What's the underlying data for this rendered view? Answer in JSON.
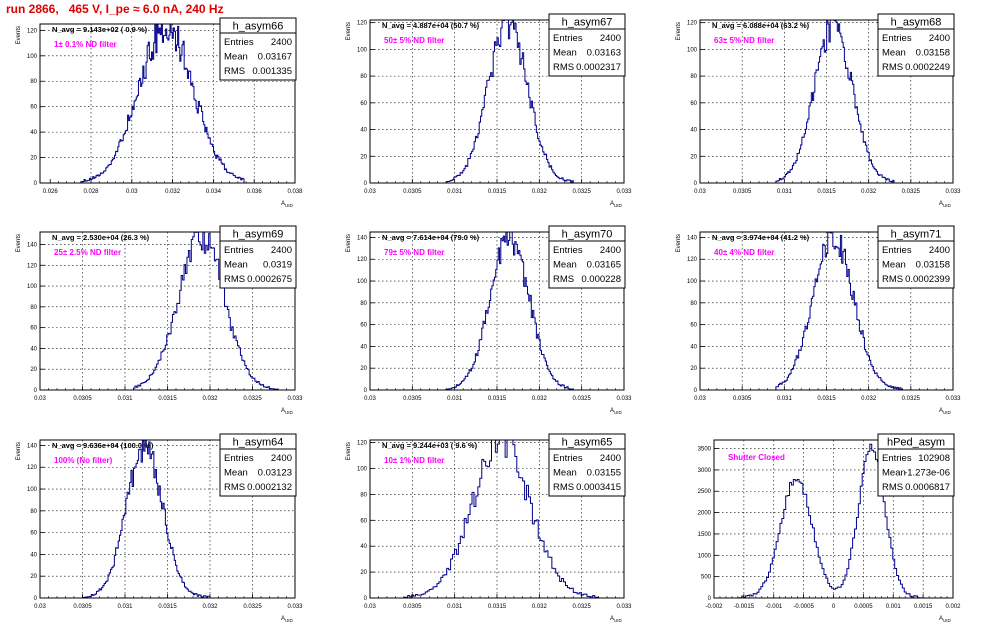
{
  "page": {
    "title": "run 2866,   465 V, I_pe ≈ 6.0 nA, 240 Hz"
  },
  "style": {
    "hist_color": "#00008b",
    "title_color": "#e00000",
    "annotation_color": "#ff00ff",
    "grid_color": "#000000"
  },
  "chart_data": [
    {
      "type": "bar",
      "name": "h_asym66",
      "xlabel": "A_uid",
      "ylabel": "Events",
      "xlim": [
        0.0255,
        0.038
      ],
      "ylim": [
        0,
        125
      ],
      "xticks": [
        "0.026",
        "0.028",
        "0.03",
        "0.032",
        "0.034",
        "0.036",
        "0.038"
      ],
      "xtick_values": [
        0.026,
        0.028,
        0.03,
        0.032,
        0.034,
        0.036,
        0.038
      ],
      "yticks": [
        0,
        20,
        40,
        60,
        80,
        100,
        120
      ],
      "navg": "N_avg = 9.143e+02 ( 0.9 %)",
      "filter": "1± 0.1% ND filter",
      "stats": {
        "entries": "2400",
        "mean": "0.03167",
        "rms": "0.001335"
      },
      "dist": {
        "peaks": [
          [
            0.03167,
            0.001335,
            1
          ]
        ],
        "ymax": 122,
        "noise": 0.12,
        "range": [
          0.0275,
          0.0355
        ],
        "bins": 150
      }
    },
    {
      "type": "bar",
      "name": "h_asym67",
      "xlabel": "A_uid",
      "ylabel": "Events",
      "xlim": [
        0.03,
        0.033
      ],
      "ylim": [
        0,
        122
      ],
      "xticks": [
        "0.03",
        "0.0305",
        "0.031",
        "0.0315",
        "0.032",
        "0.0325",
        "0.033"
      ],
      "xtick_values": [
        0.03,
        0.0305,
        0.031,
        0.0315,
        0.032,
        0.0325,
        0.033
      ],
      "yticks": [
        0,
        20,
        40,
        60,
        80,
        100,
        120
      ],
      "navg": "N_avg = 4.887e+04 (50.7 %)",
      "filter": "50± 5% ND filter",
      "stats": {
        "entries": "2400",
        "mean": "0.03163",
        "rms": "0.0002317"
      },
      "dist": {
        "peaks": [
          [
            0.03163,
            0.0002317,
            1
          ]
        ],
        "ymax": 120,
        "noise": 0.1,
        "range": [
          0.0309,
          0.0324
        ],
        "bins": 100
      }
    },
    {
      "type": "bar",
      "name": "h_asym68",
      "xlabel": "A_uid",
      "ylabel": "Events",
      "xlim": [
        0.03,
        0.033
      ],
      "ylim": [
        0,
        122
      ],
      "xticks": [
        "0.03",
        "0.0305",
        "0.031",
        "0.0315",
        "0.032",
        "0.0325",
        "0.033"
      ],
      "xtick_values": [
        0.03,
        0.0305,
        0.031,
        0.0315,
        0.032,
        0.0325,
        0.033
      ],
      "yticks": [
        0,
        20,
        40,
        60,
        80,
        100,
        120
      ],
      "navg": "N_avg = 6.088e+04 (63.2 %)",
      "filter": "63± 5% ND filter",
      "stats": {
        "entries": "2400",
        "mean": "0.03158",
        "rms": "0.0002249"
      },
      "dist": {
        "peaks": [
          [
            0.03158,
            0.0002249,
            1
          ]
        ],
        "ymax": 118,
        "noise": 0.1,
        "range": [
          0.0309,
          0.0323
        ],
        "bins": 100
      }
    },
    {
      "type": "bar",
      "name": "h_asym69",
      "xlabel": "A_uid",
      "ylabel": "Events",
      "xlim": [
        0.03,
        0.033
      ],
      "ylim": [
        0,
        152
      ],
      "xticks": [
        "0.03",
        "0.0305",
        "0.031",
        "0.0315",
        "0.032",
        "0.0325",
        "0.033"
      ],
      "xtick_values": [
        0.03,
        0.0305,
        0.031,
        0.0315,
        0.032,
        0.0325,
        0.033
      ],
      "yticks": [
        0,
        20,
        40,
        60,
        80,
        100,
        120,
        140
      ],
      "navg": "N_avg = 2.530e+04 (26.3 %)",
      "filter": "25± 2.5% ND filter",
      "stats": {
        "entries": "2400",
        "mean": "0.0319",
        "rms": "0.0002675"
      },
      "dist": {
        "peaks": [
          [
            0.0319,
            0.0002675,
            1
          ]
        ],
        "ymax": 148,
        "noise": 0.1,
        "range": [
          0.0311,
          0.0328
        ],
        "bins": 100
      }
    },
    {
      "type": "bar",
      "name": "h_asym70",
      "xlabel": "A_uid",
      "ylabel": "Events",
      "xlim": [
        0.03,
        0.033
      ],
      "ylim": [
        0,
        145
      ],
      "xticks": [
        "0.03",
        "0.0305",
        "0.031",
        "0.0315",
        "0.032",
        "0.0325",
        "0.033"
      ],
      "xtick_values": [
        0.03,
        0.0305,
        0.031,
        0.0315,
        0.032,
        0.0325,
        0.033
      ],
      "yticks": [
        0,
        20,
        40,
        60,
        80,
        100,
        120,
        140
      ],
      "navg": "N_avg = 7.614e+04 (79.0 %)",
      "filter": "79± 5% ND filter",
      "stats": {
        "entries": "2400",
        "mean": "0.03165",
        "rms": "0.000228"
      },
      "dist": {
        "peaks": [
          [
            0.03165,
            0.000228,
            1
          ]
        ],
        "ymax": 140,
        "noise": 0.1,
        "range": [
          0.0309,
          0.0324
        ],
        "bins": 100
      }
    },
    {
      "type": "bar",
      "name": "h_asym71",
      "xlabel": "A_uid",
      "ylabel": "Events",
      "xlim": [
        0.03,
        0.033
      ],
      "ylim": [
        0,
        145
      ],
      "xticks": [
        "0.03",
        "0.0305",
        "0.031",
        "0.0315",
        "0.032",
        "0.0325",
        "0.033"
      ],
      "xtick_values": [
        0.03,
        0.0305,
        0.031,
        0.0315,
        0.032,
        0.0325,
        0.033
      ],
      "yticks": [
        0,
        20,
        40,
        60,
        80,
        100,
        120,
        140
      ],
      "navg": "N_avg = 3.974e+04 (41.2 %)",
      "filter": "40± 4% ND filter",
      "stats": {
        "entries": "2400",
        "mean": "0.03158",
        "rms": "0.0002399"
      },
      "dist": {
        "peaks": [
          [
            0.03158,
            0.0002399,
            1
          ]
        ],
        "ymax": 140,
        "noise": 0.1,
        "range": [
          0.0309,
          0.0324
        ],
        "bins": 100
      }
    },
    {
      "type": "bar",
      "name": "h_asym64",
      "xlabel": "A_uid",
      "ylabel": "Events",
      "xlim": [
        0.03,
        0.033
      ],
      "ylim": [
        0,
        145
      ],
      "xticks": [
        "0.03",
        "0.0305",
        "0.031",
        "0.0315",
        "0.032",
        "0.0325",
        "0.033"
      ],
      "xtick_values": [
        0.03,
        0.0305,
        0.031,
        0.0315,
        0.032,
        0.0325,
        0.033
      ],
      "yticks": [
        0,
        20,
        40,
        60,
        80,
        100,
        120,
        140
      ],
      "navg": "N_avg = 9.636e+04 (100.0 %)",
      "filter": "100% (No filter)",
      "stats": {
        "entries": "2400",
        "mean": "0.03123",
        "rms": "0.0002132"
      },
      "dist": {
        "peaks": [
          [
            0.03123,
            0.0002132,
            1
          ]
        ],
        "ymax": 138,
        "noise": 0.1,
        "range": [
          0.0305,
          0.032
        ],
        "bins": 100
      }
    },
    {
      "type": "bar",
      "name": "h_asym65",
      "xlabel": "A_uid",
      "ylabel": "Events",
      "xlim": [
        0.03,
        0.033
      ],
      "ylim": [
        0,
        122
      ],
      "xticks": [
        "0.03",
        "0.0305",
        "0.031",
        "0.0315",
        "0.032",
        "0.0325",
        "0.033"
      ],
      "xtick_values": [
        0.03,
        0.0305,
        0.031,
        0.0315,
        0.032,
        0.0325,
        0.033
      ],
      "yticks": [
        0,
        20,
        40,
        60,
        80,
        100,
        120
      ],
      "navg": "N_avg = 9.244e+03 ( 9.6 %)",
      "filter": "10± 1% ND filter",
      "stats": {
        "entries": "2400",
        "mean": "0.03155",
        "rms": "0.0003415"
      },
      "dist": {
        "peaks": [
          [
            0.03155,
            0.0003415,
            1
          ]
        ],
        "ymax": 119,
        "noise": 0.12,
        "range": [
          0.0304,
          0.0327
        ],
        "bins": 100
      }
    },
    {
      "type": "bar",
      "name": "hPed_asym",
      "xlabel": "A_uid",
      "ylabel": "",
      "xlim": [
        -0.002,
        0.002
      ],
      "ylim": [
        0,
        3700
      ],
      "xticks": [
        "-0.002",
        "-0.0015",
        "-0.001",
        "-0.0005",
        "0",
        "0.0005",
        "0.001",
        "0.0015",
        "0.002"
      ],
      "xtick_values": [
        -0.002,
        -0.0015,
        -0.001,
        -0.0005,
        0,
        0.0005,
        0.001,
        0.0015,
        0.002
      ],
      "yticks": [
        0,
        500,
        1000,
        1500,
        2000,
        2500,
        3000,
        3500
      ],
      "navg": "",
      "filter": "Shutter Closed",
      "stats": {
        "entries": "102908",
        "mean": "-1.273e-06",
        "rms": "0.0006817"
      },
      "dist": {
        "peaks": [
          [
            -0.00062,
            0.00026,
            0.79
          ],
          [
            0.00064,
            0.00022,
            1
          ]
        ],
        "ymax": 3560,
        "noise": 0.04,
        "range": [
          -0.0016,
          0.0016
        ],
        "bins": 100
      }
    }
  ]
}
